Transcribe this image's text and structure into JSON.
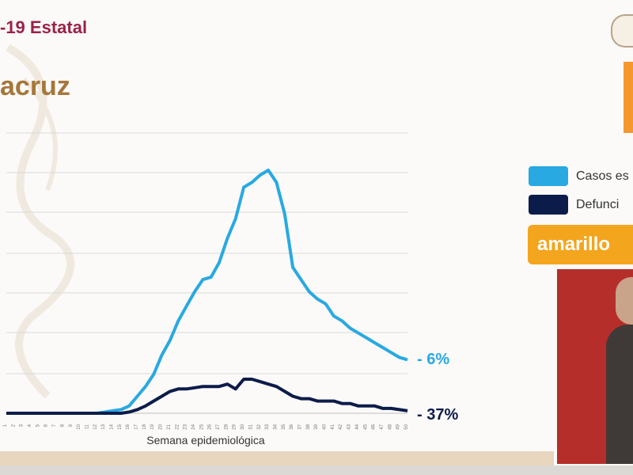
{
  "slide": {
    "title": "-19 Estatal",
    "state": "acruz"
  },
  "legend": {
    "items": [
      {
        "label": "Casos es",
        "color": "#29a9e1"
      },
      {
        "label": "Defunci",
        "color": "#0c1c4a"
      }
    ]
  },
  "status": {
    "label": "amarillo",
    "color": "#f4a51e"
  },
  "colors": {
    "accent_title": "#9b2247",
    "state_title": "#a5773a",
    "orange_box": "#f4992f"
  },
  "chart_data": {
    "type": "line",
    "xlabel": "Semana epidemiológica",
    "ylabel": "",
    "grid": true,
    "legend_position": "right",
    "ylim": [
      0,
      100
    ],
    "x": [
      1,
      2,
      3,
      4,
      5,
      6,
      7,
      8,
      9,
      10,
      11,
      12,
      13,
      14,
      15,
      16,
      17,
      18,
      19,
      20,
      21,
      22,
      23,
      24,
      25,
      26,
      27,
      28,
      29,
      30,
      31,
      32,
      33,
      34,
      35,
      36,
      37,
      38,
      39,
      40,
      41,
      42,
      43,
      44,
      45,
      46,
      47,
      48,
      49,
      50
    ],
    "series": [
      {
        "name": "Casos es",
        "color": "#29a9e1",
        "end_label": "- 6%",
        "values": [
          0,
          0,
          0,
          0,
          0,
          0,
          0,
          0,
          0,
          0,
          0,
          0,
          0.5,
          1,
          1.5,
          3,
          7,
          11,
          16,
          24,
          30,
          38,
          44,
          50,
          55,
          56,
          62,
          72,
          80,
          93,
          95,
          98,
          100,
          95,
          82,
          60,
          55,
          50,
          47,
          45,
          40,
          38,
          35,
          33,
          31,
          29,
          27,
          25,
          23,
          22
        ]
      },
      {
        "name": "Defunci",
        "color": "#0c1c4a",
        "end_label": "- 37%",
        "values": [
          0,
          0,
          0,
          0,
          0,
          0,
          0,
          0,
          0,
          0,
          0,
          0,
          0,
          0,
          0,
          0.5,
          1.5,
          3,
          5,
          7,
          9,
          10,
          10,
          10.5,
          11,
          11,
          11,
          12,
          10,
          14,
          14,
          13,
          12,
          11,
          9,
          7,
          6,
          6,
          5,
          5,
          5,
          4,
          4,
          3,
          3,
          3,
          2,
          2,
          1.5,
          1
        ]
      }
    ]
  }
}
